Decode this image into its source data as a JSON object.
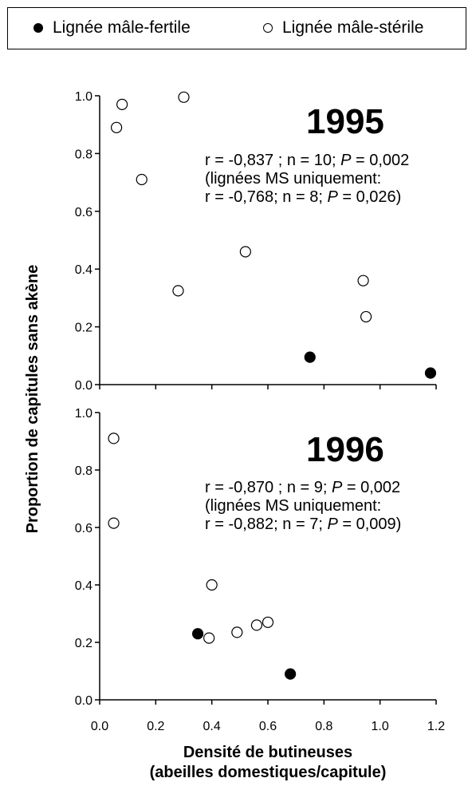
{
  "legend": {
    "fertile": {
      "label": "Lignée mâle-fertile",
      "marker": "filled-circle"
    },
    "sterile": {
      "label": "Lignée mâle-stérile",
      "marker": "open-circle"
    }
  },
  "chart_data": [
    {
      "type": "scatter",
      "panel": "top",
      "year_label": "1995",
      "stats": [
        [
          {
            "t": "r = -0,837 ; n = 10; "
          },
          {
            "t": "P",
            "i": true
          },
          {
            "t": " = 0,002"
          }
        ],
        [
          {
            "t": "(lignées MS uniquement:"
          }
        ],
        [
          {
            "t": "r = -0,768; n = 8; "
          },
          {
            "t": "P",
            "i": true
          },
          {
            "t": " = 0,026)"
          }
        ]
      ],
      "xlim": [
        0,
        1.2
      ],
      "ylim": [
        0,
        1.0
      ],
      "yticks": [
        "0.0",
        "0.2",
        "0.4",
        "0.6",
        "0.8",
        "1.0"
      ],
      "series": [
        {
          "name": "Lignée mâle-fertile",
          "marker": "filled",
          "points": [
            [
              0.75,
              0.095
            ],
            [
              1.18,
              0.04
            ]
          ]
        },
        {
          "name": "Lignée mâle-stérile",
          "marker": "open",
          "points": [
            [
              0.06,
              0.89
            ],
            [
              0.08,
              0.97
            ],
            [
              0.15,
              0.71
            ],
            [
              0.3,
              0.995
            ],
            [
              0.28,
              0.325
            ],
            [
              0.52,
              0.46
            ],
            [
              0.94,
              0.36
            ],
            [
              0.95,
              0.235
            ]
          ]
        }
      ]
    },
    {
      "type": "scatter",
      "panel": "bottom",
      "year_label": "1996",
      "stats": [
        [
          {
            "t": "r = -0,870 ; n = 9; "
          },
          {
            "t": "P",
            "i": true
          },
          {
            "t": " = 0,002"
          }
        ],
        [
          {
            "t": "(lignées MS uniquement:"
          }
        ],
        [
          {
            "t": "r = -0,882; n = 7; "
          },
          {
            "t": "P",
            "i": true
          },
          {
            "t": " = 0,009)"
          }
        ]
      ],
      "xlim": [
        0,
        1.2
      ],
      "ylim": [
        0,
        1.0
      ],
      "yticks": [
        "0.0",
        "0.2",
        "0.4",
        "0.6",
        "0.8",
        "1.0"
      ],
      "xticks": [
        "0.0",
        "0.2",
        "0.4",
        "0.6",
        "0.8",
        "1.0",
        "1.2"
      ],
      "series": [
        {
          "name": "Lignée mâle-fertile",
          "marker": "filled",
          "points": [
            [
              0.35,
              0.23
            ],
            [
              0.68,
              0.09
            ]
          ]
        },
        {
          "name": "Lignée mâle-stérile",
          "marker": "open",
          "points": [
            [
              0.05,
              0.91
            ],
            [
              0.05,
              0.615
            ],
            [
              0.4,
              0.4
            ],
            [
              0.39,
              0.215
            ],
            [
              0.49,
              0.235
            ],
            [
              0.56,
              0.26
            ],
            [
              0.6,
              0.27
            ]
          ]
        }
      ]
    }
  ],
  "ylabel": "Proportion de capitules sans akène",
  "xlabel": [
    "Densité de butineuses",
    "(abeilles domestiques/capitule)"
  ]
}
